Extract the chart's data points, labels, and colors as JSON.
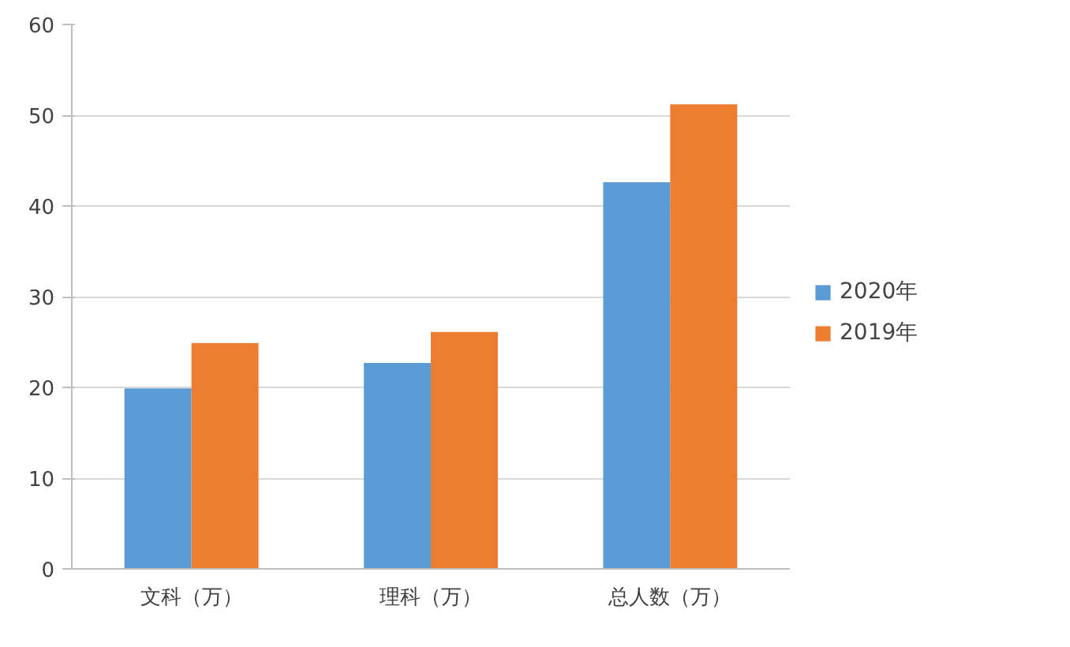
{
  "chart_data": {
    "type": "bar",
    "categories": [
      "文科（万）",
      "理科（万）",
      "总人数（万）"
    ],
    "series": [
      {
        "name": "2020年",
        "color": "#5b9bd5",
        "values": [
          19.9,
          22.7,
          42.6
        ]
      },
      {
        "name": "2019年",
        "color": "#ed7d31",
        "values": [
          24.9,
          26.1,
          51.2
        ]
      }
    ],
    "ylim": [
      0,
      60
    ],
    "yticks": [
      0,
      10,
      20,
      30,
      40,
      50,
      60
    ],
    "grid": "y",
    "legend": "right"
  }
}
